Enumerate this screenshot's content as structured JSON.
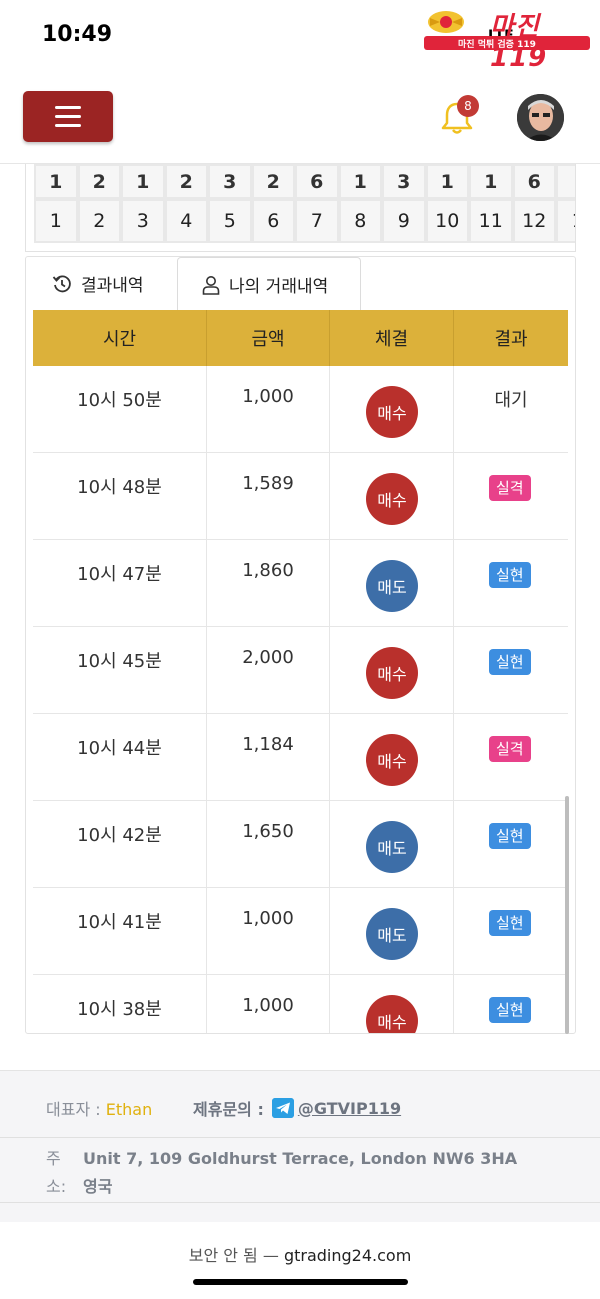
{
  "status_bar": {
    "time": "10:49",
    "network": "LTE",
    "watermark_title": "마진119",
    "watermark_sub": "마진 먹튀 검증 119"
  },
  "header": {
    "menu_icon": "hamburger-icon",
    "notification_count": "8",
    "bell_icon": "bell-icon",
    "accent_color": "#9b2423"
  },
  "result_grid": {
    "top_row": [
      "1",
      "2",
      "1",
      "2",
      "3",
      "2",
      "6",
      "1",
      "3",
      "1",
      "1",
      "6",
      ""
    ],
    "bottom_row": [
      "1",
      "2",
      "3",
      "4",
      "5",
      "6",
      "7",
      "8",
      "9",
      "10",
      "11",
      "12",
      "1"
    ]
  },
  "tabs": [
    {
      "label": "결과내역",
      "icon": "history-icon",
      "active": false
    },
    {
      "label": "나의 거래내역",
      "icon": "user-icon",
      "active": true
    }
  ],
  "table": {
    "headers": [
      "시간",
      "금액",
      "체결",
      "결과"
    ],
    "rows": [
      {
        "time": "10시 50분",
        "amount": "1,000",
        "trade": "매수",
        "trade_type": "buy",
        "result": "대기",
        "result_type": "pending"
      },
      {
        "time": "10시 48분",
        "amount": "1,589",
        "trade": "매수",
        "trade_type": "buy",
        "result": "실격",
        "result_type": "fail"
      },
      {
        "time": "10시 47분",
        "amount": "1,860",
        "trade": "매도",
        "trade_type": "sell",
        "result": "실현",
        "result_type": "win"
      },
      {
        "time": "10시 45분",
        "amount": "2,000",
        "trade": "매수",
        "trade_type": "buy",
        "result": "실현",
        "result_type": "win"
      },
      {
        "time": "10시 44분",
        "amount": "1,184",
        "trade": "매수",
        "trade_type": "buy",
        "result": "실격",
        "result_type": "fail"
      },
      {
        "time": "10시 42분",
        "amount": "1,650",
        "trade": "매도",
        "trade_type": "sell",
        "result": "실현",
        "result_type": "win"
      },
      {
        "time": "10시 41분",
        "amount": "1,000",
        "trade": "매도",
        "trade_type": "sell",
        "result": "실현",
        "result_type": "win"
      },
      {
        "time": "10시 38분",
        "amount": "1,000",
        "trade": "매수",
        "trade_type": "buy",
        "result": "실현",
        "result_type": "win"
      }
    ]
  },
  "footer": {
    "rep_label": "대표자 : ",
    "rep_name": "Ethan",
    "contact_label": "제휴문의 :",
    "contact_icon": "telegram-icon",
    "contact_handle": "@GTVIP119",
    "address_label": "주소:",
    "address": "Unit 7, 109 Goldhurst Terrace, London NW6 3HA 영국"
  },
  "browser": {
    "insecure_label": "보안 안 됨 —",
    "domain": "gtrading24.com"
  }
}
